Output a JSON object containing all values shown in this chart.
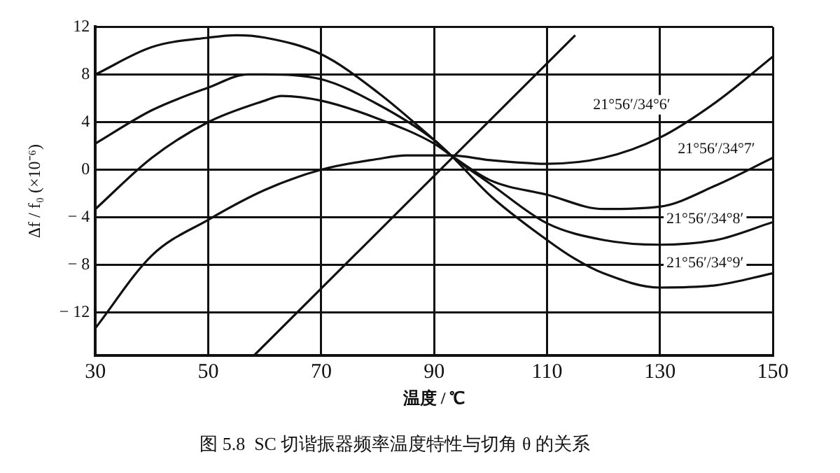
{
  "chart_data": {
    "type": "line",
    "title": "图 5.8  SC 切谐振器频率温度特性与切角 θ 的关系",
    "xlabel": "温度 / ℃",
    "ylabel": "Δf / f₀ (×10⁻⁶)",
    "xlim": [
      30,
      150
    ],
    "xticks": [
      30,
      50,
      70,
      90,
      110,
      130,
      150
    ],
    "ylim": [
      -15.6,
      12
    ],
    "yticks": [
      -12,
      -8,
      -4,
      0,
      4,
      8,
      12
    ],
    "grid": true,
    "legend": false,
    "marker": "none",
    "line_style": "solid",
    "series": [
      {
        "name": "21°56′/34°6′",
        "color": "#111111",
        "x": [
          30,
          40,
          50,
          60,
          70,
          80,
          85,
          93,
          100,
          110,
          120,
          130,
          140,
          150
        ],
        "values": [
          -13.3,
          -7.2,
          -4.2,
          -1.7,
          0,
          0.9,
          1.2,
          1.2,
          0.8,
          0.5,
          1.0,
          2.7,
          5.7,
          9.5
        ]
      },
      {
        "name": "21°56′/34°7′",
        "color": "#111111",
        "x": [
          30,
          40,
          50,
          60,
          63,
          70,
          80,
          90,
          93,
          100,
          110,
          120,
          130,
          140,
          150
        ],
        "values": [
          -3.3,
          1.0,
          4.0,
          5.8,
          6.2,
          5.8,
          4.3,
          2.2,
          1.2,
          -0.9,
          -2.1,
          -3.3,
          -3.1,
          -1.3,
          1.0
        ]
      },
      {
        "name": "21°56′/34°8′",
        "color": "#111111",
        "x": [
          30,
          40,
          50,
          57,
          60,
          70,
          80,
          90,
          93,
          100,
          110,
          120,
          130,
          140,
          150
        ],
        "values": [
          2.2,
          5.0,
          6.9,
          8.0,
          8.0,
          7.6,
          5.5,
          2.5,
          1.2,
          -1.2,
          -4.5,
          -5.9,
          -6.3,
          -5.9,
          -4.4
        ]
      },
      {
        "name": "21°56′/34°9′",
        "color": "#111111",
        "x": [
          30,
          40,
          50,
          55,
          60,
          70,
          80,
          90,
          93,
          100,
          110,
          115,
          120,
          130,
          140,
          150
        ],
        "values": [
          8.0,
          10.3,
          11.1,
          11.3,
          11.1,
          9.7,
          6.5,
          2.5,
          1.2,
          -2.2,
          -5.9,
          -7.5,
          -8.7,
          -9.9,
          -9.7,
          -8.7
        ]
      },
      {
        "color": "#111111",
        "x": [
          58.1,
          115
        ],
        "values": [
          -15.6,
          11.3
        ]
      }
    ]
  }
}
